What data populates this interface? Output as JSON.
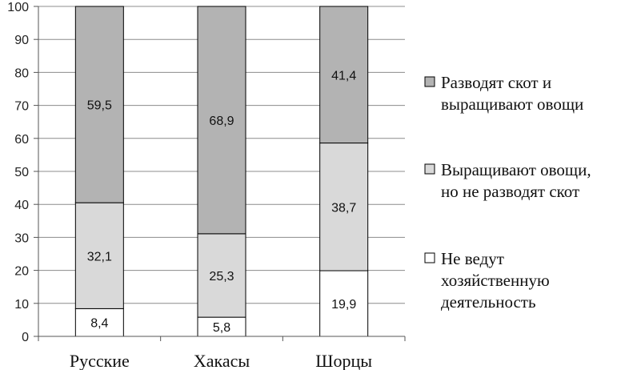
{
  "chart_data": {
    "type": "bar",
    "stacked": true,
    "categories": [
      "Русские",
      "Хакасы",
      "Шорцы"
    ],
    "series": [
      {
        "name": "Не ведут хозяйственную деятельность",
        "legend_lines": [
          "Не ведут",
          "хозяйственную",
          "деятельность"
        ],
        "color": "#ffffff",
        "values": [
          8.4,
          5.8,
          19.9
        ],
        "labels": [
          "8,4",
          "5,8",
          "19,9"
        ]
      },
      {
        "name": "Выращивают овощи, но не разводят скот",
        "legend_lines": [
          "Выращивают овощи,",
          "но не разводят скот"
        ],
        "color": "#d9d9d9",
        "values": [
          32.1,
          25.3,
          38.7
        ],
        "labels": [
          "32,1",
          "25,3",
          "38,7"
        ]
      },
      {
        "name": "Разводят скот и выращивают овощи",
        "legend_lines": [
          "Разводят скот и",
          "выращивают овощи"
        ],
        "color": "#b3b3b3",
        "values": [
          59.5,
          68.9,
          41.4
        ],
        "labels": [
          "59,5",
          "68,9",
          "41,4"
        ]
      }
    ],
    "ylim": [
      0,
      100
    ],
    "yticks": [
      0,
      10,
      20,
      30,
      40,
      50,
      60,
      70,
      80,
      90,
      100
    ],
    "grid": true,
    "legend_position": "right",
    "title": "",
    "xlabel": "",
    "ylabel": ""
  }
}
